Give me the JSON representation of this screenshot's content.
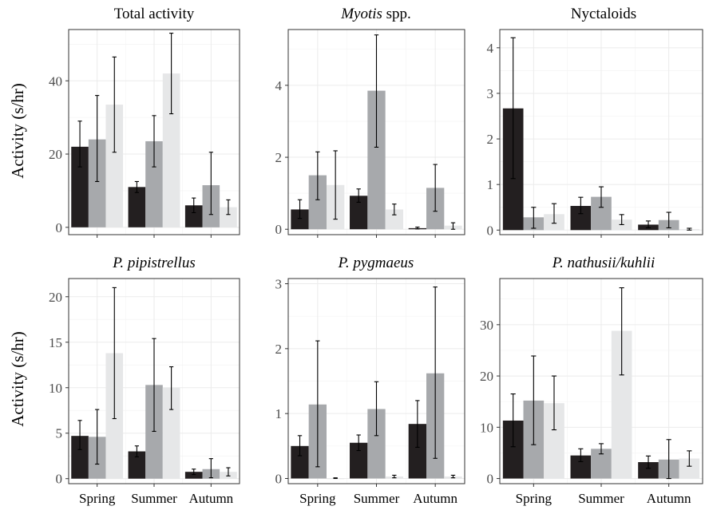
{
  "y_axis_label": "Activity (s/hr)",
  "chart_data": [
    {
      "type": "bar",
      "title": "Total activity",
      "title_parts": [
        {
          "text": "Total activity",
          "italic": false
        }
      ],
      "categories": [
        "Spring",
        "Summer",
        "Autumn"
      ],
      "show_x_labels": false,
      "ylim": [
        -2,
        54
      ],
      "yticks": [
        0,
        20,
        40
      ],
      "series": [
        {
          "color": "#231f20",
          "values": [
            22,
            11,
            6
          ],
          "err_low": [
            16.5,
            9.5,
            4
          ],
          "err_high": [
            29,
            12.5,
            8
          ]
        },
        {
          "color": "#a7a9ac",
          "values": [
            24,
            23.5,
            11.5
          ],
          "err_low": [
            12.5,
            16.5,
            3.5
          ],
          "err_high": [
            36,
            30.5,
            20.5
          ]
        },
        {
          "color": "#e6e7e8",
          "values": [
            33.5,
            42,
            5.5
          ],
          "err_low": [
            20.5,
            31,
            3.5
          ],
          "err_high": [
            46.5,
            53,
            7.5
          ]
        }
      ]
    },
    {
      "type": "bar",
      "title": "Myotis spp.",
      "title_parts": [
        {
          "text": "Myotis",
          "italic": true
        },
        {
          "text": " spp.",
          "italic": false
        }
      ],
      "categories": [
        "Spring",
        "Summer",
        "Autumn"
      ],
      "show_x_labels": false,
      "ylim": [
        -0.15,
        5.55
      ],
      "yticks": [
        0,
        2,
        4
      ],
      "series": [
        {
          "color": "#231f20",
          "values": [
            0.55,
            0.93,
            0.03
          ],
          "err_low": [
            0.3,
            0.75,
            0.01
          ],
          "err_high": [
            0.82,
            1.12,
            0.06
          ]
        },
        {
          "color": "#a7a9ac",
          "values": [
            1.5,
            3.85,
            1.15
          ],
          "err_low": [
            0.82,
            2.28,
            0.5
          ],
          "err_high": [
            2.15,
            5.4,
            1.8
          ]
        },
        {
          "color": "#e6e7e8",
          "values": [
            1.23,
            0.55,
            0.1
          ],
          "err_low": [
            0.28,
            0.4,
            0.0
          ],
          "err_high": [
            2.18,
            0.7,
            0.18
          ]
        }
      ]
    },
    {
      "type": "bar",
      "title": "Nyctaloids",
      "title_parts": [
        {
          "text": "Nyctaloids",
          "italic": false
        }
      ],
      "categories": [
        "Spring",
        "Summer",
        "Autumn"
      ],
      "show_x_labels": false,
      "ylim": [
        -0.1,
        4.4
      ],
      "yticks": [
        0,
        1,
        2,
        3,
        4
      ],
      "series": [
        {
          "color": "#231f20",
          "values": [
            2.67,
            0.53,
            0.12
          ],
          "err_low": [
            1.13,
            0.36,
            0.05
          ],
          "err_high": [
            4.22,
            0.72,
            0.2
          ]
        },
        {
          "color": "#a7a9ac",
          "values": [
            0.28,
            0.73,
            0.22
          ],
          "err_low": [
            0.04,
            0.5,
            0.05
          ],
          "err_high": [
            0.5,
            0.95,
            0.39
          ]
        },
        {
          "color": "#e6e7e8",
          "values": [
            0.35,
            0.23,
            0.02
          ],
          "err_low": [
            0.15,
            0.12,
            0.0
          ],
          "err_high": [
            0.58,
            0.34,
            0.04
          ]
        }
      ]
    },
    {
      "type": "bar",
      "title": "P. pipistrellus",
      "title_parts": [
        {
          "text": "P. pipistrellus",
          "italic": true
        }
      ],
      "categories": [
        "Spring",
        "Summer",
        "Autumn"
      ],
      "show_x_labels": true,
      "ylim": [
        -0.55,
        22
      ],
      "yticks": [
        0,
        5,
        10,
        15,
        20
      ],
      "series": [
        {
          "color": "#231f20",
          "values": [
            4.7,
            3.0,
            0.75
          ],
          "err_low": [
            3.2,
            2.4,
            0.45
          ],
          "err_high": [
            6.4,
            3.6,
            1.05
          ]
        },
        {
          "color": "#a7a9ac",
          "values": [
            4.6,
            10.3,
            1.05
          ],
          "err_low": [
            1.6,
            5.2,
            0.1
          ],
          "err_high": [
            7.6,
            15.4,
            2.2
          ]
        },
        {
          "color": "#e6e7e8",
          "values": [
            13.8,
            10.0,
            0.75
          ],
          "err_low": [
            6.6,
            7.6,
            0.3
          ],
          "err_high": [
            21.0,
            12.3,
            1.2
          ]
        }
      ]
    },
    {
      "type": "bar",
      "title": "P. pygmaeus",
      "title_parts": [
        {
          "text": "P. pygmaeus",
          "italic": true
        }
      ],
      "categories": [
        "Spring",
        "Summer",
        "Autumn"
      ],
      "show_x_labels": true,
      "ylim": [
        -0.08,
        3.08
      ],
      "yticks": [
        0,
        1,
        2,
        3
      ],
      "series": [
        {
          "color": "#231f20",
          "values": [
            0.5,
            0.55,
            0.84
          ],
          "err_low": [
            0.35,
            0.43,
            0.48
          ],
          "err_high": [
            0.66,
            0.67,
            1.2
          ]
        },
        {
          "color": "#a7a9ac",
          "values": [
            1.14,
            1.07,
            1.62
          ],
          "err_low": [
            0.18,
            0.66,
            0.31
          ],
          "err_high": [
            2.12,
            1.49,
            2.95
          ]
        },
        {
          "color": "#e6e7e8",
          "values": [
            0.0,
            0.03,
            0.03
          ],
          "err_low": [
            0.0,
            0.01,
            0.01
          ],
          "err_high": [
            0.01,
            0.05,
            0.05
          ]
        }
      ]
    },
    {
      "type": "bar",
      "title": "P. nathusii/kuhlii",
      "title_parts": [
        {
          "text": "P. nathusii/kuhlii",
          "italic": true
        }
      ],
      "categories": [
        "Spring",
        "Summer",
        "Autumn"
      ],
      "show_x_labels": true,
      "ylim": [
        -1,
        39
      ],
      "yticks": [
        0,
        10,
        20,
        30
      ],
      "series": [
        {
          "color": "#231f20",
          "values": [
            11.3,
            4.5,
            3.2
          ],
          "err_low": [
            6.2,
            3.3,
            2.0
          ],
          "err_high": [
            16.5,
            5.8,
            4.4
          ]
        },
        {
          "color": "#a7a9ac",
          "values": [
            15.2,
            5.8,
            3.7
          ],
          "err_low": [
            6.6,
            4.8,
            0.0
          ],
          "err_high": [
            23.9,
            6.8,
            7.6
          ]
        },
        {
          "color": "#e6e7e8",
          "values": [
            14.7,
            28.8,
            3.9
          ],
          "err_low": [
            9.5,
            20.2,
            2.4
          ],
          "err_high": [
            20.0,
            37.2,
            5.4
          ]
        }
      ]
    }
  ]
}
